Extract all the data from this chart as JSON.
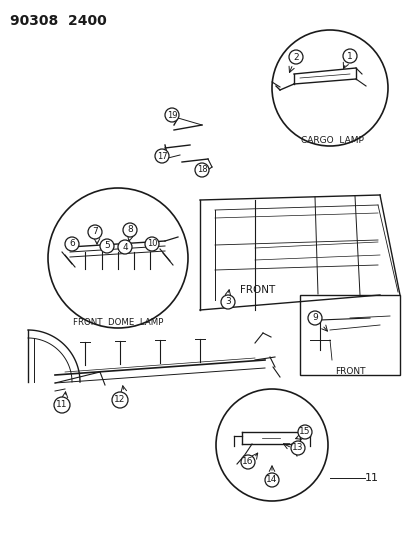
{
  "title": "90308  2400",
  "bg_color": "#ffffff",
  "line_color": "#1a1a1a",
  "fig_width": 4.14,
  "fig_height": 5.33,
  "cargo_lamp_label": "CARGO  LAMP",
  "front_dome_label": "FRONT  DOME  LAMP",
  "front_label": "FRONT",
  "front_label2": "FRONT",
  "part_11_label": "11"
}
